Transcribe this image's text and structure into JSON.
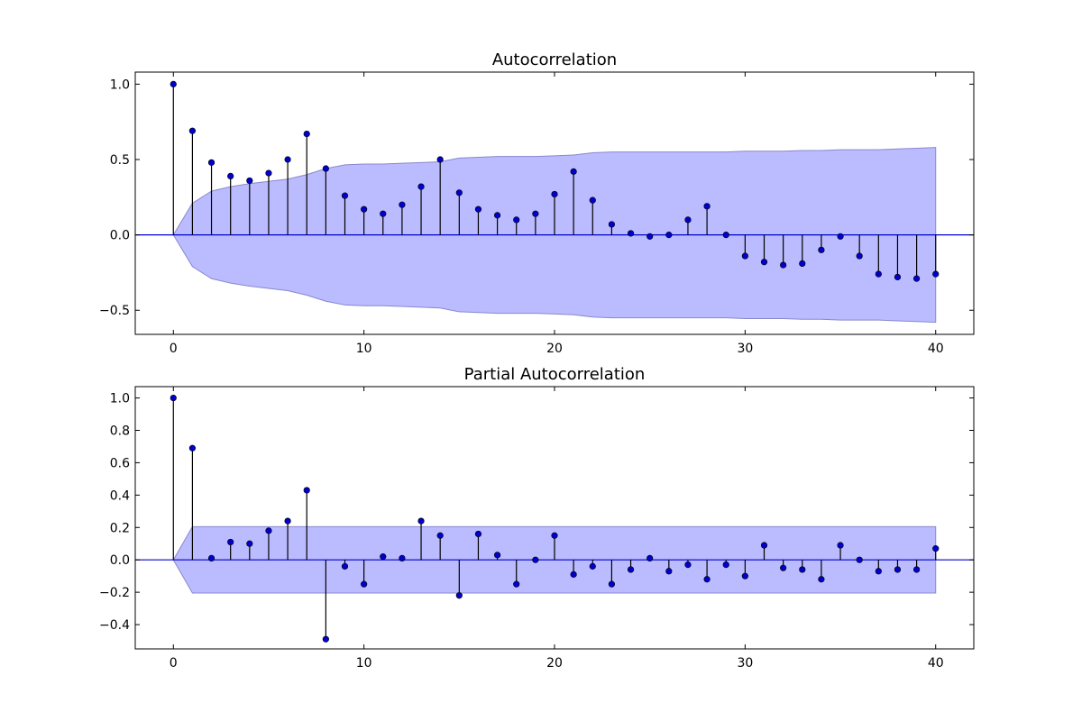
{
  "chart_data": [
    {
      "type": "stem",
      "title": "Autocorrelation",
      "xlabel": "",
      "ylabel": "",
      "xlim": [
        -2,
        42
      ],
      "ylim": [
        -0.66,
        1.08
      ],
      "x_ticks": [
        0,
        10,
        20,
        30,
        40
      ],
      "x_tick_labels": [
        "0",
        "10",
        "20",
        "30",
        "40"
      ],
      "y_ticks": [
        1.0,
        0.5,
        0.0,
        -0.5
      ],
      "y_tick_labels": [
        "1.0",
        "0.5",
        "0.0",
        "−0.5"
      ],
      "lags": [
        0,
        1,
        2,
        3,
        4,
        5,
        6,
        7,
        8,
        9,
        10,
        11,
        12,
        13,
        14,
        15,
        16,
        17,
        18,
        19,
        20,
        21,
        22,
        23,
        24,
        25,
        26,
        27,
        28,
        29,
        30,
        31,
        32,
        33,
        34,
        35,
        36,
        37,
        38,
        39,
        40
      ],
      "values": [
        1.0,
        0.69,
        0.48,
        0.39,
        0.36,
        0.41,
        0.5,
        0.67,
        0.44,
        0.26,
        0.17,
        0.14,
        0.2,
        0.32,
        0.5,
        0.28,
        0.17,
        0.13,
        0.1,
        0.14,
        0.27,
        0.42,
        0.23,
        0.07,
        0.01,
        -0.01,
        0.0,
        0.1,
        0.19,
        0.0,
        -0.14,
        -0.18,
        -0.2,
        -0.19,
        -0.1,
        -0.01,
        -0.14,
        -0.26,
        -0.28,
        -0.29,
        -0.26
      ],
      "confint_upper": [
        0.0,
        0.21,
        0.29,
        0.32,
        0.34,
        0.355,
        0.37,
        0.4,
        0.44,
        0.465,
        0.47,
        0.47,
        0.475,
        0.48,
        0.485,
        0.51,
        0.515,
        0.52,
        0.52,
        0.52,
        0.525,
        0.53,
        0.545,
        0.55,
        0.55,
        0.55,
        0.55,
        0.55,
        0.55,
        0.55,
        0.555,
        0.555,
        0.555,
        0.56,
        0.56,
        0.565,
        0.565,
        0.565,
        0.57,
        0.575,
        0.58
      ],
      "colors": {
        "stem": "#000000",
        "marker": "#0000cc",
        "baseline": "#0000cc",
        "band_fill": "#bbbbff",
        "band_edge": "#8888cc"
      }
    },
    {
      "type": "stem",
      "title": "Partial Autocorrelation",
      "xlabel": "",
      "ylabel": "",
      "xlim": [
        -2,
        42
      ],
      "ylim": [
        -0.55,
        1.07
      ],
      "x_ticks": [
        0,
        10,
        20,
        30,
        40
      ],
      "x_tick_labels": [
        "0",
        "10",
        "20",
        "30",
        "40"
      ],
      "y_ticks": [
        1.0,
        0.8,
        0.6,
        0.4,
        0.2,
        0.0,
        -0.2,
        -0.4
      ],
      "y_tick_labels": [
        "1.0",
        "0.8",
        "0.6",
        "0.4",
        "0.2",
        "0.0",
        "−0.2",
        "−0.4"
      ],
      "lags": [
        0,
        1,
        2,
        3,
        4,
        5,
        6,
        7,
        8,
        9,
        10,
        11,
        12,
        13,
        14,
        15,
        16,
        17,
        18,
        19,
        20,
        21,
        22,
        23,
        24,
        25,
        26,
        27,
        28,
        29,
        30,
        31,
        32,
        33,
        34,
        35,
        36,
        37,
        38,
        39,
        40
      ],
      "values": [
        1.0,
        0.69,
        0.01,
        0.11,
        0.1,
        0.18,
        0.24,
        0.43,
        -0.49,
        -0.04,
        -0.15,
        0.02,
        0.01,
        0.24,
        0.15,
        -0.22,
        0.16,
        0.03,
        -0.15,
        0.0,
        0.15,
        -0.09,
        -0.04,
        -0.15,
        -0.06,
        0.01,
        -0.07,
        -0.03,
        -0.12,
        -0.03,
        -0.1,
        0.09,
        -0.05,
        -0.06,
        -0.12,
        0.09,
        0.0,
        -0.07,
        -0.06,
        -0.06,
        0.07
      ],
      "confint_upper": [
        0.0,
        0.205,
        0.205,
        0.205,
        0.205,
        0.205,
        0.205,
        0.205,
        0.205,
        0.205,
        0.205,
        0.205,
        0.205,
        0.205,
        0.205,
        0.205,
        0.205,
        0.205,
        0.205,
        0.205,
        0.205,
        0.205,
        0.205,
        0.205,
        0.205,
        0.205,
        0.205,
        0.205,
        0.205,
        0.205,
        0.205,
        0.205,
        0.205,
        0.205,
        0.205,
        0.205,
        0.205,
        0.205,
        0.205,
        0.205,
        0.205
      ],
      "colors": {
        "stem": "#000000",
        "marker": "#0000cc",
        "baseline": "#0000cc",
        "band_fill": "#bbbbff",
        "band_edge": "#8888cc"
      }
    }
  ]
}
